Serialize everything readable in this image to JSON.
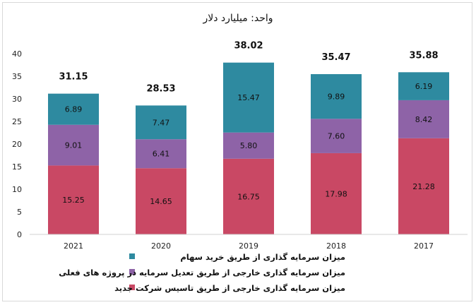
{
  "chart_data": {
    "type": "bar",
    "stacked": true,
    "title": "واحد: میلیارد دلار",
    "categories": [
      "2021",
      "2020",
      "2019",
      "2018",
      "2017"
    ],
    "series": [
      {
        "name": "میزان سرمایه گذاری خارجی از طریق تاسیس  شرکت جدید",
        "color": "#c94864",
        "values": [
          15.25,
          14.65,
          16.75,
          17.98,
          21.28
        ],
        "labels": [
          "15.25",
          "14.65",
          "16.75",
          "17.98",
          "21.28"
        ]
      },
      {
        "name": "میزان سرمایه گذاری خارجی از طریق تعدیل سرمایه در پروژه های فعلی",
        "color": "#8e63a7",
        "values": [
          9.01,
          6.41,
          5.8,
          7.6,
          8.42
        ],
        "labels": [
          "9.01",
          "6.41",
          "5.80",
          "7.60",
          "8.42"
        ]
      },
      {
        "name": "میزان سرمایه گذاری از طریق خرید سهام",
        "color": "#2e8aa0",
        "values": [
          6.89,
          7.47,
          15.47,
          9.89,
          6.19
        ],
        "labels": [
          "6.89",
          "7.47",
          "15.47",
          "9.89",
          "6.19"
        ]
      }
    ],
    "totals": [
      "31.15",
      "28.53",
      "38.02",
      "35.47",
      "35.88"
    ],
    "ylim": [
      0,
      40
    ],
    "yticks": [
      "0",
      "5",
      "10",
      "15",
      "20",
      "25",
      "30",
      "35",
      "40"
    ],
    "legend_order": [
      2,
      1,
      0
    ],
    "legend_position": "bottom",
    "grid": false
  }
}
